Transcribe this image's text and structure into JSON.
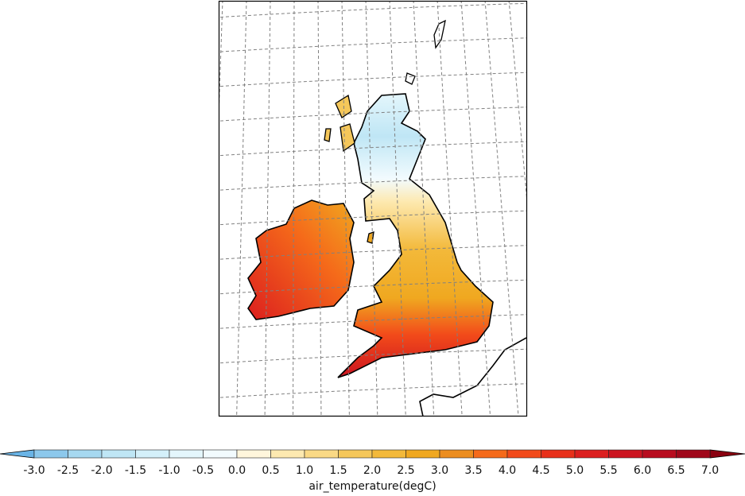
{
  "map": {
    "variable": "air_temperature",
    "land_colors": {
      "scotland_high": "#bfe6f5",
      "north": "#fde9b0",
      "midlands": "#f0a820",
      "south": "#f24a1a",
      "southwest": "#cc1420",
      "ireland": "#ec8d1f",
      "ireland_west": "#e8301a"
    },
    "gridline_color": "#808080",
    "coastline_color": "#000000"
  },
  "colorbar": {
    "label": "air_temperature(degC)",
    "ticks": [
      "-3.0",
      "-2.5",
      "-2.0",
      "-1.5",
      "-1.0",
      "-0.5",
      "0.0",
      "0.5",
      "1.0",
      "1.5",
      "2.0",
      "2.5",
      "3.0",
      "3.5",
      "4.0",
      "4.5",
      "5.0",
      "5.5",
      "6.0",
      "6.5",
      "7.0"
    ],
    "range": [
      -3.0,
      7.0
    ],
    "extend": "both",
    "under_color": "#6ab4e6",
    "over_color": "#8a0010",
    "bin_colors": [
      "#8cc8ec",
      "#a6d8f0",
      "#bfe6f5",
      "#d4f0fa",
      "#e4f6fc",
      "#f2fbfe",
      "#fff6dc",
      "#fde9b0",
      "#fad985",
      "#f5c75a",
      "#f3b93a",
      "#f0a820",
      "#ec8d1f",
      "#f56a1a",
      "#f24a1a",
      "#e8301a",
      "#dc1f1f",
      "#cc1420",
      "#b80c1e",
      "#a0071a"
    ]
  }
}
